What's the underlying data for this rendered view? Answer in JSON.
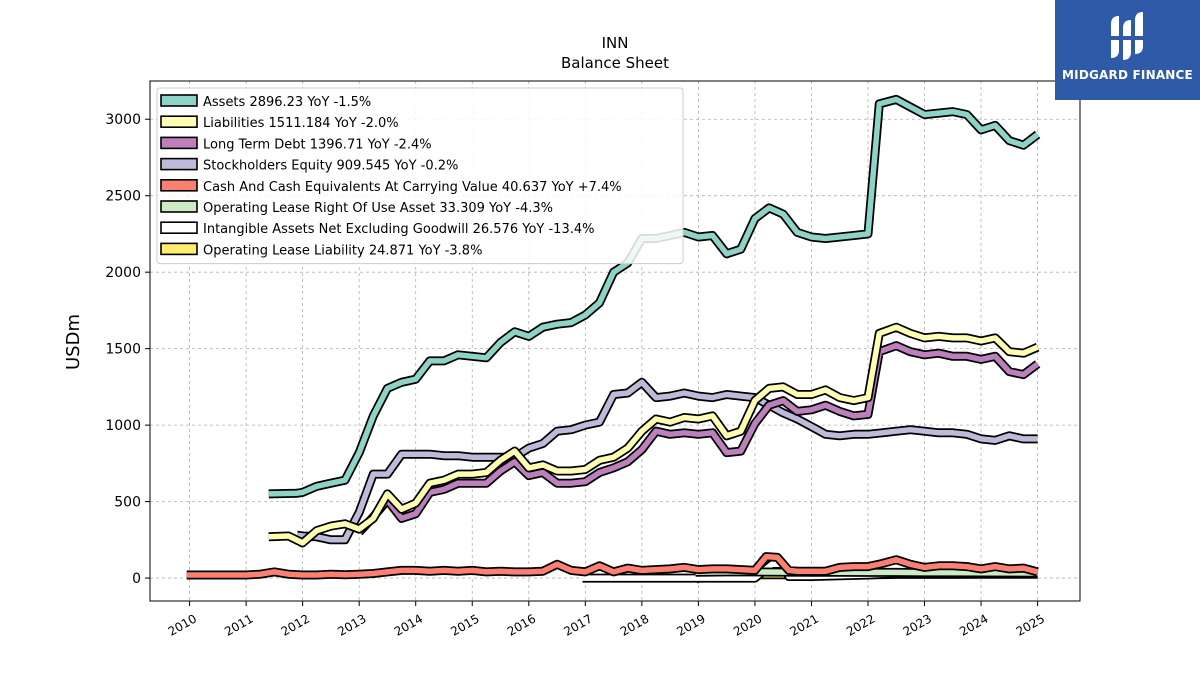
{
  "chart_data": {
    "type": "line",
    "title": "INN",
    "subtitle": "Balance  Sheet",
    "ylabel": "USDm",
    "xlabel": "",
    "ylim": [
      -150,
      3250
    ],
    "xlim": [
      2009.3,
      2025.75
    ],
    "yticks": [
      0,
      500,
      1000,
      1500,
      2000,
      2500,
      3000
    ],
    "xticks": [
      "2010",
      "2011",
      "2012",
      "2013",
      "2014",
      "2015",
      "2016",
      "2017",
      "2018",
      "2019",
      "2020",
      "2021",
      "2022",
      "2023",
      "2024",
      "2025"
    ],
    "grid": true,
    "legend_position": "top-left",
    "series": [
      {
        "name": "Assets",
        "legend": "Assets  2896.23 YoY -1.5%",
        "color": "#8dd3c7",
        "x": [
          2011.4,
          2011.9,
          2012.0,
          2012.25,
          2012.5,
          2012.75,
          2013.0,
          2013.25,
          2013.5,
          2013.75,
          2014.0,
          2014.25,
          2014.5,
          2014.75,
          2015.0,
          2015.25,
          2015.5,
          2015.75,
          2016.0,
          2016.25,
          2016.5,
          2016.75,
          2017.0,
          2017.25,
          2017.5,
          2017.75,
          2018.0,
          2018.25,
          2018.5,
          2018.75,
          2019.0,
          2019.25,
          2019.5,
          2019.75,
          2020.0,
          2020.25,
          2020.5,
          2020.75,
          2021.0,
          2021.25,
          2021.5,
          2021.75,
          2022.0,
          2022.2,
          2022.5,
          2022.75,
          2023.0,
          2023.25,
          2023.5,
          2023.75,
          2024.0,
          2024.25,
          2024.5,
          2024.75,
          2025.0
        ],
        "y": [
          550,
          555,
          560,
          600,
          620,
          640,
          820,
          1060,
          1240,
          1280,
          1300,
          1420,
          1420,
          1460,
          1450,
          1440,
          1540,
          1610,
          1580,
          1640,
          1660,
          1670,
          1720,
          1800,
          2000,
          2060,
          2220,
          2220,
          2240,
          2260,
          2230,
          2240,
          2120,
          2150,
          2350,
          2420,
          2380,
          2260,
          2230,
          2220,
          2230,
          2240,
          2250,
          3100,
          3130,
          3080,
          3030,
          3040,
          3050,
          3030,
          2930,
          2960,
          2860,
          2830,
          2900
        ]
      },
      {
        "name": "Liabilities",
        "legend": "Liabilities  1511.184 YoY -2.0%",
        "color": "#ffffb3",
        "x": [
          2011.4,
          2011.75,
          2012.0,
          2012.25,
          2012.5,
          2012.75,
          2013.0,
          2013.25,
          2013.5,
          2013.75,
          2014.0,
          2014.25,
          2014.5,
          2014.75,
          2015.0,
          2015.25,
          2015.5,
          2015.75,
          2016.0,
          2016.25,
          2016.5,
          2016.75,
          2017.0,
          2017.25,
          2017.5,
          2017.75,
          2018.0,
          2018.25,
          2018.5,
          2018.75,
          2019.0,
          2019.25,
          2019.5,
          2019.75,
          2020.0,
          2020.25,
          2020.5,
          2020.75,
          2021.0,
          2021.25,
          2021.5,
          2021.75,
          2022.0,
          2022.2,
          2022.5,
          2022.75,
          2023.0,
          2023.25,
          2023.5,
          2023.75,
          2024.0,
          2024.25,
          2024.5,
          2024.75,
          2025.0
        ],
        "y": [
          270,
          275,
          230,
          310,
          340,
          355,
          320,
          390,
          550,
          450,
          490,
          620,
          640,
          680,
          680,
          690,
          770,
          830,
          720,
          740,
          700,
          700,
          710,
          770,
          790,
          850,
          960,
          1040,
          1020,
          1050,
          1040,
          1060,
          930,
          960,
          1160,
          1240,
          1250,
          1200,
          1200,
          1230,
          1180,
          1160,
          1180,
          1600,
          1640,
          1600,
          1570,
          1580,
          1570,
          1570,
          1550,
          1570,
          1480,
          1470,
          1510
        ]
      },
      {
        "name": "Long Term Debt",
        "legend": "Long Term Debt  1396.71 YoY -2.4%",
        "color": "#bc80bd",
        "x": [
          2013.0,
          2013.25,
          2013.5,
          2013.75,
          2014.0,
          2014.25,
          2014.5,
          2014.75,
          2015.0,
          2015.25,
          2015.5,
          2015.75,
          2016.0,
          2016.25,
          2016.5,
          2016.75,
          2017.0,
          2017.25,
          2017.5,
          2017.75,
          2018.0,
          2018.25,
          2018.5,
          2018.75,
          2019.0,
          2019.25,
          2019.5,
          2019.75,
          2020.0,
          2020.25,
          2020.5,
          2020.75,
          2021.0,
          2021.25,
          2021.5,
          2021.75,
          2022.0,
          2022.2,
          2022.5,
          2022.75,
          2023.0,
          2023.25,
          2023.5,
          2023.75,
          2024.0,
          2024.25,
          2024.5,
          2024.75,
          2025.0
        ],
        "y": [
          300,
          400,
          510,
          390,
          420,
          560,
          580,
          620,
          620,
          620,
          700,
          760,
          670,
          690,
          620,
          620,
          630,
          690,
          720,
          760,
          840,
          960,
          940,
          950,
          940,
          950,
          820,
          830,
          1010,
          1130,
          1160,
          1090,
          1100,
          1130,
          1090,
          1060,
          1070,
          1480,
          1520,
          1480,
          1460,
          1470,
          1450,
          1450,
          1430,
          1450,
          1350,
          1330,
          1400
        ]
      },
      {
        "name": "Stockholders Equity",
        "legend": "Stockholders Equity  909.545 YoY -0.2%",
        "color": "#bebada",
        "x": [
          2011.9,
          2012.0,
          2012.25,
          2012.5,
          2012.75,
          2013.0,
          2013.25,
          2013.5,
          2013.75,
          2014.0,
          2014.25,
          2014.5,
          2014.75,
          2015.0,
          2015.25,
          2015.5,
          2015.75,
          2016.0,
          2016.25,
          2016.5,
          2016.75,
          2017.0,
          2017.25,
          2017.5,
          2017.75,
          2018.0,
          2018.25,
          2018.5,
          2018.75,
          2019.0,
          2019.25,
          2019.5,
          2019.75,
          2020.0,
          2020.25,
          2020.5,
          2020.75,
          2021.0,
          2021.25,
          2021.5,
          2021.75,
          2022.0,
          2022.25,
          2022.5,
          2022.75,
          2023.0,
          2023.25,
          2023.5,
          2023.75,
          2024.0,
          2024.25,
          2024.5,
          2024.75,
          2025.0
        ],
        "y": [
          280,
          275,
          270,
          250,
          250,
          430,
          680,
          680,
          810,
          810,
          810,
          800,
          800,
          790,
          790,
          790,
          790,
          850,
          880,
          960,
          970,
          1000,
          1020,
          1200,
          1210,
          1280,
          1180,
          1190,
          1210,
          1190,
          1180,
          1200,
          1190,
          1180,
          1130,
          1080,
          1040,
          990,
          940,
          930,
          940,
          940,
          950,
          960,
          970,
          960,
          950,
          950,
          940,
          910,
          900,
          930,
          910,
          910
        ]
      },
      {
        "name": "Cash And Cash Equivalents At Carrying Value",
        "legend": "Cash And Cash Equivalents At Carrying Value  40.637 YoY +7.4%",
        "color": "#fb8072",
        "x": [
          2009.95,
          2010.5,
          2011.0,
          2011.25,
          2011.5,
          2011.75,
          2012.0,
          2012.25,
          2012.5,
          2012.75,
          2013.0,
          2013.25,
          2013.5,
          2013.75,
          2014.0,
          2014.25,
          2014.5,
          2014.75,
          2015.0,
          2015.25,
          2015.5,
          2015.75,
          2016.0,
          2016.25,
          2016.5,
          2016.75,
          2017.0,
          2017.25,
          2017.5,
          2017.75,
          2018.0,
          2018.25,
          2018.5,
          2018.75,
          2019.0,
          2019.25,
          2019.5,
          2019.75,
          2020.0,
          2020.2,
          2020.4,
          2020.6,
          2020.75,
          2021.0,
          2021.25,
          2021.5,
          2021.75,
          2022.0,
          2022.25,
          2022.5,
          2022.75,
          2023.0,
          2023.25,
          2023.5,
          2023.75,
          2024.0,
          2024.25,
          2024.5,
          2024.75,
          2025.0
        ],
        "y": [
          20,
          20,
          20,
          25,
          40,
          25,
          20,
          20,
          25,
          22,
          25,
          30,
          40,
          50,
          50,
          45,
          50,
          45,
          50,
          40,
          45,
          40,
          40,
          45,
          90,
          50,
          40,
          80,
          40,
          65,
          50,
          55,
          60,
          70,
          55,
          60,
          60,
          55,
          50,
          140,
          135,
          50,
          45,
          45,
          45,
          70,
          75,
          75,
          95,
          120,
          90,
          70,
          80,
          80,
          75,
          60,
          75,
          60,
          65,
          40
        ]
      },
      {
        "name": "Operating Lease Right Of Use Asset",
        "legend": "Operating Lease Right Of Use Asset  33.309 YoY -4.3%",
        "color": "#ccebc5",
        "x": [
          2018.95,
          2019.5,
          2020.0,
          2020.5,
          2021.0,
          2021.5,
          2022.0,
          2022.5,
          2023.0,
          2023.5,
          2024.0,
          2024.5,
          2025.0
        ],
        "y": [
          38,
          40,
          40,
          39,
          38,
          38,
          37,
          37,
          36,
          36,
          35,
          34,
          33
        ]
      },
      {
        "name": "Intangible Assets Net Excluding Goodwill",
        "legend": "Intangible Assets Net Excluding Goodwill  26.576 YoY -13.4%",
        "color": "#ffffff",
        "x": [
          2016.95,
          2017.5,
          2018.0,
          2018.5,
          2019.0,
          2019.5,
          2020.0,
          2020.3,
          2020.5,
          2020.6,
          2021.0,
          2021.5,
          2022.0,
          2022.5,
          2023.0,
          2023.5,
          2024.0,
          2024.5,
          2025.0
        ],
        "y": [
          0,
          0,
          0,
          0,
          0,
          0,
          0,
          90,
          90,
          10,
          10,
          15,
          20,
          30,
          30,
          30,
          29,
          28,
          27
        ]
      },
      {
        "name": "Operating Lease Liability",
        "legend": "Operating Lease Liability  24.871 YoY -3.8%",
        "color": "#ffed6f",
        "x": [
          2018.95,
          2019.1,
          2019.5,
          2020.0,
          2020.5,
          2021.0,
          2021.5,
          2022.0,
          2022.5,
          2023.0,
          2023.5,
          2024.0,
          2024.5,
          2025.0
        ],
        "y": [
          -10,
          20,
          20,
          22,
          22,
          22,
          22,
          22,
          24,
          24,
          24,
          25,
          25,
          25
        ]
      }
    ]
  },
  "logo": {
    "text": "MIDGARD FINANCE"
  }
}
